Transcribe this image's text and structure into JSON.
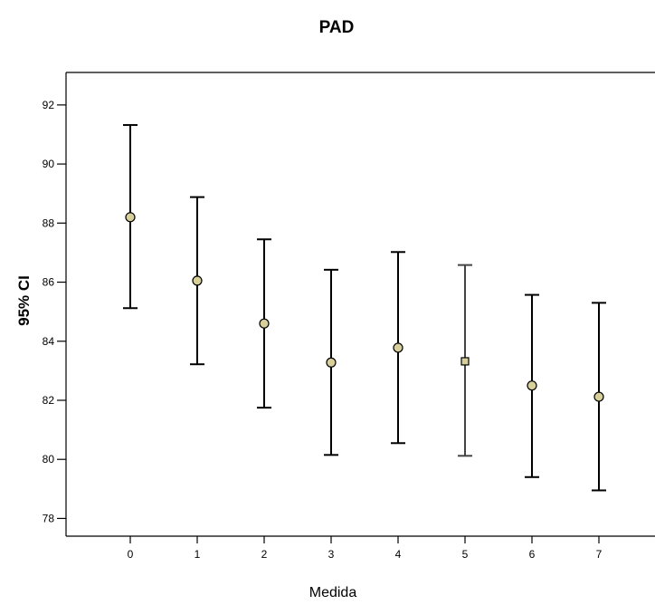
{
  "chart_data": {
    "type": "errorbar",
    "title": "PAD",
    "xlabel": "Medida",
    "ylabel": "95% CI",
    "categories": [
      "0",
      "1",
      "2",
      "3",
      "4",
      "5",
      "6",
      "7"
    ],
    "ylim": [
      77.4,
      93.1
    ],
    "yticks": [
      78,
      80,
      82,
      84,
      86,
      88,
      90,
      92
    ],
    "grid": false,
    "series": [
      {
        "mean": [
          88.2,
          86.05,
          84.6,
          83.28,
          83.78,
          83.32,
          82.5,
          82.12
        ],
        "lower": [
          85.12,
          83.22,
          81.75,
          80.15,
          80.55,
          80.12,
          79.4,
          78.95
        ],
        "upper": [
          91.32,
          88.88,
          87.45,
          86.42,
          87.02,
          86.58,
          85.57,
          85.3
        ]
      }
    ],
    "colors": {
      "marker_fill": "#d8d09a",
      "marker_stroke": "#000000",
      "bar_stroke": "#000000",
      "bar_stroke_alt": "#444444"
    }
  }
}
